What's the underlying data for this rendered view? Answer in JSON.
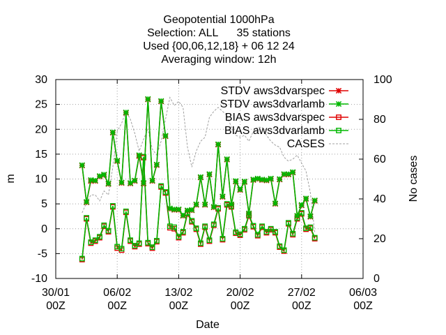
{
  "chart_data": {
    "type": "line",
    "title": [
      "Geopotential 1000hPa",
      "Selection: ALL      35 stations",
      "Used {00,06,12,18} + 06 12 24",
      "Averaging window: 12h"
    ],
    "xlabel": "Date",
    "ylabel": "m",
    "y2label": "No cases",
    "xlim": [
      0,
      35
    ],
    "ylim": [
      -10,
      30
    ],
    "y2lim": [
      0,
      100
    ],
    "x_ticks": [
      {
        "x": 0,
        "line1": "30/01",
        "line2": "00Z"
      },
      {
        "x": 7,
        "line1": "06/02",
        "line2": "00Z"
      },
      {
        "x": 14,
        "line1": "13/02",
        "line2": "00Z"
      },
      {
        "x": 21,
        "line1": "20/02",
        "line2": "00Z"
      },
      {
        "x": 28,
        "line1": "27/02",
        "line2": "00Z"
      },
      {
        "x": 35,
        "line1": "06/03",
        "line2": "00Z"
      }
    ],
    "y_ticks": [
      -10,
      -5,
      0,
      5,
      10,
      15,
      20,
      25,
      30
    ],
    "y2_ticks": [
      0,
      20,
      40,
      60,
      80,
      100
    ],
    "grid": true,
    "legend_position": "top-right",
    "series": [
      {
        "name": "STDV aws3dvarspec",
        "color": "#e00000",
        "marker": "star",
        "axis": "y",
        "points": [
          [
            3.0,
            12.7
          ],
          [
            3.5,
            5.3
          ],
          [
            4.0,
            9.6
          ],
          [
            4.5,
            9.6
          ],
          [
            5.0,
            10.5
          ],
          [
            5.5,
            10.8
          ],
          [
            6.0,
            9.0
          ],
          [
            6.5,
            19.3
          ],
          [
            7.0,
            13.6
          ],
          [
            7.5,
            9.2
          ],
          [
            8.0,
            23.3
          ],
          [
            8.5,
            9.1
          ],
          [
            9.0,
            9.6
          ],
          [
            9.5,
            14.6
          ],
          [
            10.0,
            9.1
          ],
          [
            10.5,
            26.0
          ],
          [
            11.0,
            9.6
          ],
          [
            11.5,
            12.8
          ],
          [
            12.0,
            25.6
          ],
          [
            12.5,
            18.6
          ],
          [
            13.0,
            4.0
          ],
          [
            13.5,
            3.8
          ],
          [
            14.0,
            3.8
          ],
          [
            14.5,
            2.6
          ],
          [
            15.0,
            3.6
          ],
          [
            15.5,
            3.7
          ],
          [
            16.0,
            4.8
          ],
          [
            16.5,
            10.3
          ],
          [
            17.0,
            4.8
          ],
          [
            17.5,
            10.9
          ],
          [
            18.0,
            4.3
          ],
          [
            18.5,
            16.9
          ],
          [
            19.0,
            6.4
          ],
          [
            19.5,
            13.9
          ],
          [
            20.0,
            4.8
          ],
          [
            20.5,
            9.5
          ],
          [
            21.0,
            7.8
          ],
          [
            21.5,
            9.4
          ],
          [
            22.0,
            3.0
          ],
          [
            22.5,
            9.8
          ],
          [
            23.0,
            10.0
          ],
          [
            23.5,
            9.8
          ],
          [
            24.0,
            9.7
          ],
          [
            24.5,
            10.0
          ],
          [
            25.0,
            5.0
          ],
          [
            25.5,
            9.9
          ],
          [
            26.0,
            10.9
          ],
          [
            26.5,
            10.9
          ],
          [
            27.0,
            11.3
          ],
          [
            27.5,
            2.5
          ],
          [
            28.0,
            4.7
          ],
          [
            28.5,
            6.0
          ],
          [
            29.0,
            2.4
          ],
          [
            29.5,
            5.6
          ]
        ]
      },
      {
        "name": "STDV aws3dvarlamb",
        "color": "#00b800",
        "marker": "star",
        "axis": "y",
        "points": [
          [
            3.0,
            12.8
          ],
          [
            3.5,
            5.4
          ],
          [
            4.0,
            9.8
          ],
          [
            4.5,
            9.7
          ],
          [
            5.0,
            10.6
          ],
          [
            5.5,
            10.9
          ],
          [
            6.0,
            9.1
          ],
          [
            6.5,
            19.4
          ],
          [
            7.0,
            13.7
          ],
          [
            7.5,
            9.3
          ],
          [
            8.0,
            23.4
          ],
          [
            8.5,
            9.2
          ],
          [
            9.0,
            9.7
          ],
          [
            9.5,
            14.8
          ],
          [
            10.0,
            9.2
          ],
          [
            10.5,
            26.1
          ],
          [
            11.0,
            9.7
          ],
          [
            11.5,
            12.9
          ],
          [
            12.0,
            25.7
          ],
          [
            12.5,
            18.7
          ],
          [
            13.0,
            4.1
          ],
          [
            13.5,
            3.9
          ],
          [
            14.0,
            3.9
          ],
          [
            14.5,
            2.7
          ],
          [
            15.0,
            3.7
          ],
          [
            15.5,
            3.8
          ],
          [
            16.0,
            4.9
          ],
          [
            16.5,
            10.4
          ],
          [
            17.0,
            4.9
          ],
          [
            17.5,
            11.0
          ],
          [
            18.0,
            4.4
          ],
          [
            18.5,
            17.0
          ],
          [
            19.0,
            6.5
          ],
          [
            19.5,
            14.0
          ],
          [
            20.0,
            4.9
          ],
          [
            20.5,
            9.6
          ],
          [
            21.0,
            7.9
          ],
          [
            21.5,
            9.5
          ],
          [
            22.0,
            3.1
          ],
          [
            22.5,
            9.9
          ],
          [
            23.0,
            10.1
          ],
          [
            23.5,
            9.9
          ],
          [
            24.0,
            9.8
          ],
          [
            24.5,
            10.1
          ],
          [
            25.0,
            5.1
          ],
          [
            25.5,
            10.0
          ],
          [
            26.0,
            11.0
          ],
          [
            26.5,
            11.0
          ],
          [
            27.0,
            11.4
          ],
          [
            27.5,
            2.6
          ],
          [
            28.0,
            4.8
          ],
          [
            28.5,
            6.1
          ],
          [
            29.0,
            2.5
          ],
          [
            29.5,
            5.7
          ]
        ]
      },
      {
        "name": "BIAS aws3dvarspec",
        "color": "#e00000",
        "marker": "square",
        "axis": "y",
        "points": [
          [
            3.0,
            -6.2
          ],
          [
            3.5,
            2.0
          ],
          [
            4.0,
            -2.9
          ],
          [
            4.5,
            -2.5
          ],
          [
            5.0,
            -1.8
          ],
          [
            5.5,
            0.5
          ],
          [
            6.0,
            -0.6
          ],
          [
            6.5,
            4.4
          ],
          [
            7.0,
            -3.9
          ],
          [
            7.5,
            -4.3
          ],
          [
            8.0,
            3.3
          ],
          [
            8.5,
            -2.5
          ],
          [
            9.0,
            -3.6
          ],
          [
            9.5,
            -3.1
          ],
          [
            10.0,
            14.3
          ],
          [
            10.5,
            -3.0
          ],
          [
            11.0,
            -3.9
          ],
          [
            11.5,
            -2.6
          ],
          [
            12.0,
            8.4
          ],
          [
            12.5,
            7.2
          ],
          [
            13.0,
            0.2
          ],
          [
            13.5,
            0.0
          ],
          [
            14.0,
            -1.8
          ],
          [
            14.5,
            -0.8
          ],
          [
            15.0,
            3.0
          ],
          [
            15.5,
            1.4
          ],
          [
            16.0,
            -0.1
          ],
          [
            16.5,
            -3.1
          ],
          [
            17.0,
            0.3
          ],
          [
            17.5,
            -2.5
          ],
          [
            18.0,
            0.7
          ],
          [
            18.5,
            4.0
          ],
          [
            19.0,
            -2.2
          ],
          [
            19.5,
            4.8
          ],
          [
            20.0,
            4.4
          ],
          [
            20.5,
            -0.9
          ],
          [
            21.0,
            -1.3
          ],
          [
            21.5,
            -0.2
          ],
          [
            22.0,
            2.6
          ],
          [
            22.5,
            0.4
          ],
          [
            23.0,
            -1.4
          ],
          [
            23.5,
            0.3
          ],
          [
            24.0,
            -0.8
          ],
          [
            24.5,
            -0.2
          ],
          [
            25.0,
            -0.8
          ],
          [
            25.5,
            -3.7
          ],
          [
            26.0,
            -4.5
          ],
          [
            26.5,
            1.0
          ],
          [
            27.0,
            -1.2
          ],
          [
            27.5,
            2.0
          ],
          [
            28.0,
            3.0
          ],
          [
            28.5,
            -0.1
          ],
          [
            29.0,
            0.1
          ],
          [
            29.5,
            -2.0
          ]
        ]
      },
      {
        "name": "BIAS aws3dvarlamb",
        "color": "#00b800",
        "marker": "square",
        "axis": "y",
        "points": [
          [
            3.0,
            -6.0
          ],
          [
            3.5,
            2.2
          ],
          [
            4.0,
            -2.7
          ],
          [
            4.5,
            -2.3
          ],
          [
            5.0,
            -1.6
          ],
          [
            5.5,
            0.7
          ],
          [
            6.0,
            -0.4
          ],
          [
            6.5,
            4.6
          ],
          [
            7.0,
            -3.6
          ],
          [
            7.5,
            -4.0
          ],
          [
            8.0,
            3.5
          ],
          [
            8.5,
            -2.3
          ],
          [
            9.0,
            -3.4
          ],
          [
            9.5,
            -2.9
          ],
          [
            10.0,
            14.5
          ],
          [
            10.5,
            -2.8
          ],
          [
            11.0,
            -3.7
          ],
          [
            11.5,
            -2.4
          ],
          [
            12.0,
            8.6
          ],
          [
            12.5,
            7.4
          ],
          [
            13.0,
            0.5
          ],
          [
            13.5,
            0.3
          ],
          [
            14.0,
            -1.6
          ],
          [
            14.5,
            -0.6
          ],
          [
            15.0,
            3.2
          ],
          [
            15.5,
            1.6
          ],
          [
            16.0,
            0.1
          ],
          [
            16.5,
            -2.9
          ],
          [
            17.0,
            0.5
          ],
          [
            17.5,
            -2.3
          ],
          [
            18.0,
            0.9
          ],
          [
            18.5,
            4.2
          ],
          [
            19.0,
            -2.0
          ],
          [
            19.5,
            5.0
          ],
          [
            20.0,
            4.6
          ],
          [
            20.5,
            -0.7
          ],
          [
            21.0,
            -1.1
          ],
          [
            21.5,
            0.0
          ],
          [
            22.0,
            2.8
          ],
          [
            22.5,
            0.6
          ],
          [
            23.0,
            -1.2
          ],
          [
            23.5,
            0.5
          ],
          [
            24.0,
            -0.6
          ],
          [
            24.5,
            0.0
          ],
          [
            25.0,
            -0.6
          ],
          [
            25.5,
            -3.5
          ],
          [
            26.0,
            -4.3
          ],
          [
            26.5,
            1.2
          ],
          [
            27.0,
            -1.0
          ],
          [
            27.5,
            2.2
          ],
          [
            28.0,
            3.2
          ],
          [
            28.5,
            0.1
          ],
          [
            29.0,
            0.3
          ],
          [
            29.5,
            -1.8
          ]
        ]
      },
      {
        "name": "CASES",
        "color": "#a0a0a0",
        "marker": "dash",
        "axis": "y2",
        "points": [
          [
            3.0,
            33
          ],
          [
            3.5,
            38
          ],
          [
            4.0,
            42
          ],
          [
            4.5,
            42
          ],
          [
            5.0,
            39
          ],
          [
            5.5,
            44
          ],
          [
            6.0,
            42
          ],
          [
            6.5,
            56
          ],
          [
            7.0,
            74
          ],
          [
            7.5,
            78
          ],
          [
            8.0,
            84
          ],
          [
            8.5,
            80
          ],
          [
            9.0,
            73
          ],
          [
            9.5,
            64
          ],
          [
            10.0,
            70
          ],
          [
            10.5,
            75
          ],
          [
            11.0,
            65
          ],
          [
            11.5,
            62
          ],
          [
            12.0,
            69
          ],
          [
            12.5,
            80
          ],
          [
            13.0,
            91
          ],
          [
            13.5,
            87
          ],
          [
            14.0,
            89
          ],
          [
            14.5,
            86
          ],
          [
            15.0,
            66
          ],
          [
            15.5,
            56
          ],
          [
            16.0,
            64
          ],
          [
            16.5,
            69
          ],
          [
            17.0,
            71
          ],
          [
            17.5,
            81
          ],
          [
            18.0,
            84
          ],
          [
            18.5,
            86
          ],
          [
            19.0,
            84
          ],
          [
            19.5,
            82
          ],
          [
            20.0,
            76
          ],
          [
            20.5,
            72
          ],
          [
            21.0,
            71
          ],
          [
            21.5,
            72
          ],
          [
            22.0,
            69
          ],
          [
            22.5,
            74
          ],
          [
            23.0,
            76
          ],
          [
            23.5,
            76
          ],
          [
            24.0,
            72
          ],
          [
            24.5,
            69
          ],
          [
            25.0,
            67
          ],
          [
            25.5,
            66
          ],
          [
            26.0,
            61
          ],
          [
            26.5,
            59
          ],
          [
            27.0,
            60
          ],
          [
            27.5,
            62
          ],
          [
            28.0,
            58
          ],
          [
            28.5,
            54
          ],
          [
            29.0,
            43
          ],
          [
            29.5,
            23
          ]
        ]
      }
    ]
  }
}
